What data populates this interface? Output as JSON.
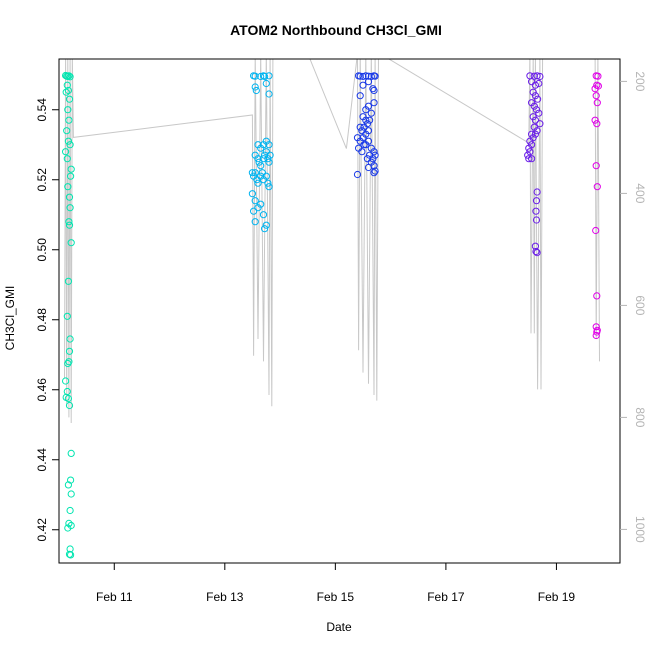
{
  "chart_data": {
    "type": "scatter",
    "title": "ATOM2 Northbound CH3Cl_GMI",
    "xlabel": "Date",
    "ylabel": "CH3Cl_GMI",
    "xlim": [
      10.0,
      20.15
    ],
    "ylim": [
      0.4105,
      0.5545
    ],
    "x_ticks": [
      {
        "value": 11,
        "label": "Feb 11"
      },
      {
        "value": 13,
        "label": "Feb 13"
      },
      {
        "value": 15,
        "label": "Feb 15"
      },
      {
        "value": 17,
        "label": "Feb 17"
      },
      {
        "value": 19,
        "label": "Feb 19"
      }
    ],
    "y_ticks": [
      {
        "value": 0.42,
        "label": "0.42"
      },
      {
        "value": 0.44,
        "label": "0.44"
      },
      {
        "value": 0.46,
        "label": "0.46"
      },
      {
        "value": 0.48,
        "label": "0.48"
      },
      {
        "value": 0.5,
        "label": "0.50"
      },
      {
        "value": 0.52,
        "label": "0.52"
      },
      {
        "value": 0.54,
        "label": "0.54"
      }
    ],
    "secondary_axis": {
      "description": "pressure (hPa), inverted, drawn in grey on right",
      "ylim": [
        160,
        1060
      ],
      "ticks": [
        {
          "value": 200,
          "label": "200"
        },
        {
          "value": 400,
          "label": "400"
        },
        {
          "value": 600,
          "label": "600"
        },
        {
          "value": 800,
          "label": "800"
        },
        {
          "value": 1000,
          "label": "1000"
        }
      ],
      "color": "#b4b4b4",
      "path": [
        [
          10.1,
          730
        ],
        [
          10.12,
          150
        ],
        [
          10.14,
          780
        ],
        [
          10.16,
          150
        ],
        [
          10.18,
          800
        ],
        [
          10.2,
          150
        ],
        [
          10.22,
          810
        ],
        [
          10.24,
          150
        ],
        [
          10.26,
          300
        ],
        [
          13.5,
          260
        ],
        [
          13.52,
          690
        ],
        [
          13.55,
          150
        ],
        [
          13.6,
          660
        ],
        [
          13.65,
          150
        ],
        [
          13.7,
          700
        ],
        [
          13.75,
          150
        ],
        [
          13.8,
          760
        ],
        [
          13.82,
          150
        ],
        [
          13.85,
          780
        ],
        [
          13.87,
          150
        ],
        [
          14.5,
          150
        ],
        [
          15.2,
          320
        ],
        [
          15.4,
          150
        ],
        [
          15.42,
          680
        ],
        [
          15.45,
          150
        ],
        [
          15.5,
          720
        ],
        [
          15.55,
          150
        ],
        [
          15.6,
          740
        ],
        [
          15.65,
          150
        ],
        [
          15.7,
          760
        ],
        [
          15.72,
          150
        ],
        [
          15.75,
          770
        ],
        [
          15.78,
          150
        ],
        [
          15.8,
          150
        ],
        [
          18.5,
          310
        ],
        [
          18.52,
          150
        ],
        [
          18.54,
          650
        ],
        [
          18.58,
          150
        ],
        [
          18.6,
          650
        ],
        [
          18.62,
          150
        ],
        [
          18.66,
          750
        ],
        [
          18.7,
          150
        ],
        [
          18.72,
          750
        ],
        [
          18.75,
          150
        ],
        [
          19.1,
          150
        ],
        [
          19.2,
          150
        ],
        [
          19.7,
          150
        ],
        [
          19.72,
          660
        ],
        [
          19.75,
          150
        ],
        [
          19.78,
          700
        ]
      ]
    },
    "series": [
      {
        "color": "#00e5b0",
        "points": [
          [
            10.12,
            0.5498
          ],
          [
            10.14,
            0.5496
          ],
          [
            10.16,
            0.5495
          ],
          [
            10.18,
            0.5497
          ],
          [
            10.2,
            0.5494
          ],
          [
            10.15,
            0.547
          ],
          [
            10.17,
            0.5455
          ],
          [
            10.19,
            0.543
          ],
          [
            10.13,
            0.545
          ],
          [
            10.16,
            0.54
          ],
          [
            10.18,
            0.537
          ],
          [
            10.14,
            0.534
          ],
          [
            10.17,
            0.531
          ],
          [
            10.2,
            0.53
          ],
          [
            10.12,
            0.528
          ],
          [
            10.15,
            0.526
          ],
          [
            10.22,
            0.523
          ],
          [
            10.21,
            0.521
          ],
          [
            10.16,
            0.518
          ],
          [
            10.19,
            0.515
          ],
          [
            10.2,
            0.512
          ],
          [
            10.18,
            0.508
          ],
          [
            10.19,
            0.507
          ],
          [
            10.22,
            0.502
          ],
          [
            10.17,
            0.491
          ],
          [
            10.15,
            0.481
          ],
          [
            10.2,
            0.4745
          ],
          [
            10.19,
            0.471
          ],
          [
            10.18,
            0.468
          ],
          [
            10.16,
            0.4675
          ],
          [
            10.12,
            0.4625
          ],
          [
            10.15,
            0.4595
          ],
          [
            10.13,
            0.4578
          ],
          [
            10.17,
            0.4575
          ],
          [
            10.19,
            0.4555
          ],
          [
            10.22,
            0.4418
          ],
          [
            10.21,
            0.4342
          ],
          [
            10.17,
            0.4328
          ],
          [
            10.22,
            0.4302
          ],
          [
            10.2,
            0.4255
          ],
          [
            10.18,
            0.4218
          ],
          [
            10.22,
            0.4212
          ],
          [
            10.16,
            0.4205
          ],
          [
            10.2,
            0.4145
          ],
          [
            10.19,
            0.413
          ],
          [
            10.21,
            0.4128
          ]
        ]
      },
      {
        "color": "#00b4f0",
        "points": [
          [
            13.52,
            0.5497
          ],
          [
            13.55,
            0.5496
          ],
          [
            13.65,
            0.5495
          ],
          [
            13.7,
            0.5497
          ],
          [
            13.72,
            0.5495
          ],
          [
            13.8,
            0.5497
          ],
          [
            13.55,
            0.5465
          ],
          [
            13.57,
            0.5455
          ],
          [
            13.75,
            0.5475
          ],
          [
            13.8,
            0.5445
          ],
          [
            13.6,
            0.53
          ],
          [
            13.65,
            0.529
          ],
          [
            13.7,
            0.53
          ],
          [
            13.75,
            0.531
          ],
          [
            13.8,
            0.53
          ],
          [
            13.55,
            0.527
          ],
          [
            13.6,
            0.526
          ],
          [
            13.62,
            0.525
          ],
          [
            13.65,
            0.524
          ],
          [
            13.7,
            0.526
          ],
          [
            13.72,
            0.527
          ],
          [
            13.75,
            0.528
          ],
          [
            13.78,
            0.526
          ],
          [
            13.8,
            0.525
          ],
          [
            13.82,
            0.527
          ],
          [
            13.5,
            0.522
          ],
          [
            13.52,
            0.521
          ],
          [
            13.55,
            0.522
          ],
          [
            13.58,
            0.52
          ],
          [
            13.6,
            0.519
          ],
          [
            13.65,
            0.521
          ],
          [
            13.68,
            0.522
          ],
          [
            13.7,
            0.52
          ],
          [
            13.75,
            0.521
          ],
          [
            13.78,
            0.519
          ],
          [
            13.8,
            0.518
          ],
          [
            13.5,
            0.516
          ],
          [
            13.55,
            0.514
          ],
          [
            13.6,
            0.512
          ],
          [
            13.65,
            0.513
          ],
          [
            13.52,
            0.511
          ],
          [
            13.55,
            0.508
          ],
          [
            13.7,
            0.51
          ],
          [
            13.75,
            0.507
          ],
          [
            13.72,
            0.506
          ]
        ]
      },
      {
        "color": "#1a3ae8",
        "points": [
          [
            15.42,
            0.5497
          ],
          [
            15.45,
            0.5496
          ],
          [
            15.5,
            0.5495
          ],
          [
            15.55,
            0.5497
          ],
          [
            15.6,
            0.5496
          ],
          [
            15.65,
            0.5495
          ],
          [
            15.7,
            0.5497
          ],
          [
            15.72,
            0.5496
          ],
          [
            15.5,
            0.547
          ],
          [
            15.6,
            0.548
          ],
          [
            15.68,
            0.546
          ],
          [
            15.7,
            0.5455
          ],
          [
            15.45,
            0.544
          ],
          [
            15.55,
            0.54
          ],
          [
            15.6,
            0.541
          ],
          [
            15.7,
            0.542
          ],
          [
            15.65,
            0.539
          ],
          [
            15.5,
            0.538
          ],
          [
            15.55,
            0.537
          ],
          [
            15.58,
            0.536
          ],
          [
            15.62,
            0.537
          ],
          [
            15.45,
            0.535
          ],
          [
            15.48,
            0.534
          ],
          [
            15.52,
            0.535
          ],
          [
            15.55,
            0.533
          ],
          [
            15.6,
            0.534
          ],
          [
            15.4,
            0.532
          ],
          [
            15.45,
            0.531
          ],
          [
            15.5,
            0.532
          ],
          [
            15.55,
            0.53
          ],
          [
            15.6,
            0.531
          ],
          [
            15.42,
            0.529
          ],
          [
            15.48,
            0.528
          ],
          [
            15.52,
            0.53
          ],
          [
            15.65,
            0.529
          ],
          [
            15.7,
            0.528
          ],
          [
            15.62,
            0.527
          ],
          [
            15.68,
            0.526
          ],
          [
            15.72,
            0.527
          ],
          [
            15.58,
            0.526
          ],
          [
            15.65,
            0.525
          ],
          [
            15.7,
            0.524
          ],
          [
            15.6,
            0.5235
          ],
          [
            15.72,
            0.5225
          ],
          [
            15.7,
            0.522
          ],
          [
            15.4,
            0.5215
          ]
        ]
      },
      {
        "color": "#6a1ee8",
        "points": [
          [
            18.52,
            0.5497
          ],
          [
            18.6,
            0.5496
          ],
          [
            18.65,
            0.5497
          ],
          [
            18.7,
            0.5495
          ],
          [
            18.55,
            0.548
          ],
          [
            18.62,
            0.547
          ],
          [
            18.68,
            0.5475
          ],
          [
            18.58,
            0.545
          ],
          [
            18.62,
            0.544
          ],
          [
            18.66,
            0.543
          ],
          [
            18.55,
            0.542
          ],
          [
            18.6,
            0.541
          ],
          [
            18.64,
            0.54
          ],
          [
            18.68,
            0.539
          ],
          [
            18.58,
            0.538
          ],
          [
            18.62,
            0.537
          ],
          [
            18.7,
            0.536
          ],
          [
            18.6,
            0.535
          ],
          [
            18.65,
            0.534
          ],
          [
            18.55,
            0.533
          ],
          [
            18.58,
            0.532
          ],
          [
            18.62,
            0.533
          ],
          [
            18.52,
            0.531
          ],
          [
            18.55,
            0.53
          ],
          [
            18.5,
            0.529
          ],
          [
            18.52,
            0.528
          ],
          [
            18.48,
            0.527
          ],
          [
            18.5,
            0.526
          ],
          [
            18.55,
            0.526
          ],
          [
            18.65,
            0.5165
          ],
          [
            18.64,
            0.514
          ],
          [
            18.63,
            0.511
          ],
          [
            18.64,
            0.5085
          ],
          [
            18.62,
            0.501
          ],
          [
            18.63,
            0.4995
          ],
          [
            18.65,
            0.4992
          ]
        ]
      },
      {
        "color": "#e000e8",
        "points": [
          [
            19.72,
            0.5497
          ],
          [
            19.75,
            0.5496
          ],
          [
            19.73,
            0.547
          ],
          [
            19.76,
            0.5468
          ],
          [
            19.7,
            0.546
          ],
          [
            19.72,
            0.544
          ],
          [
            19.74,
            0.542
          ],
          [
            19.7,
            0.537
          ],
          [
            19.73,
            0.536
          ],
          [
            19.72,
            0.524
          ],
          [
            19.74,
            0.518
          ],
          [
            19.71,
            0.5055
          ],
          [
            19.73,
            0.4868
          ],
          [
            19.72,
            0.478
          ],
          [
            19.74,
            0.477
          ],
          [
            19.73,
            0.4765
          ],
          [
            19.72,
            0.4755
          ]
        ]
      }
    ]
  }
}
